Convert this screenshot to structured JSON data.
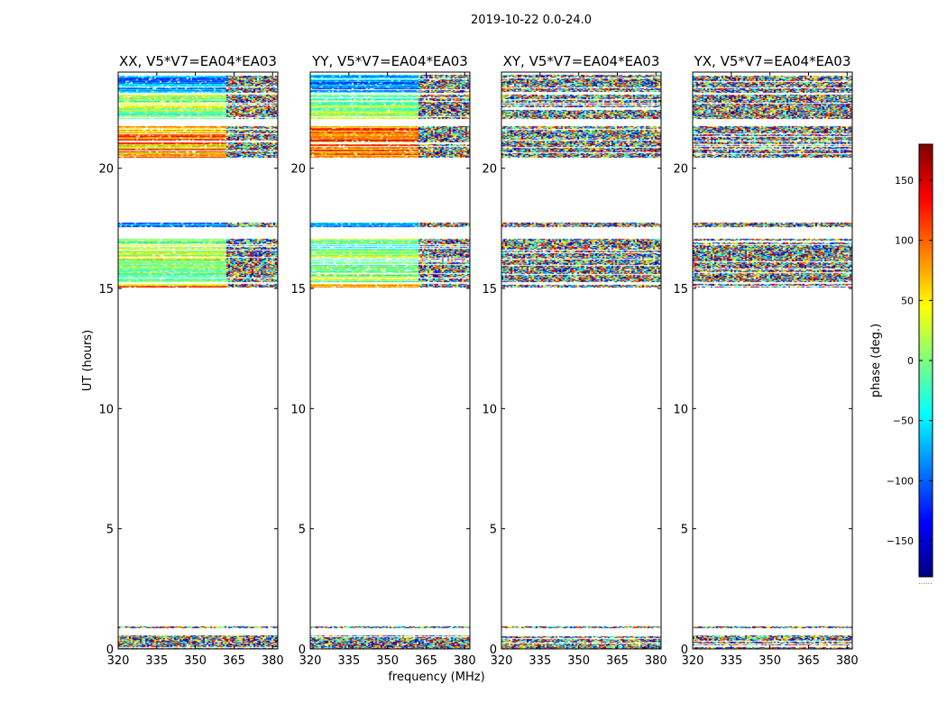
{
  "suptitle": "2019-10-22 0.0-24.0",
  "xlabel": "frequency (MHz)",
  "ylabel": "UT (hours)",
  "colorbar_label": "phase (deg.)",
  "colorbar_footnote": "......",
  "colormap": {
    "name": "jet",
    "stops": [
      "#00007f",
      "#0000ff",
      "#007fff",
      "#00ffff",
      "#7fff7f",
      "#ffff00",
      "#ff7f00",
      "#ff0000",
      "#7f0000"
    ]
  },
  "chart_data": {
    "type": "heatmap",
    "panels": [
      {
        "title": "XX, V5*V7=EA04*EA03",
        "pol": "XX",
        "kind": "parallel"
      },
      {
        "title": "YY, V5*V7=EA04*EA03",
        "pol": "YY",
        "kind": "parallel"
      },
      {
        "title": "XY, V5*V7=EA04*EA03",
        "pol": "XY",
        "kind": "cross"
      },
      {
        "title": "YX, V5*V7=EA04*EA03",
        "pol": "YX",
        "kind": "cross"
      }
    ],
    "x_range": [
      320,
      382
    ],
    "x_ticks": [
      320,
      335,
      350,
      365,
      380
    ],
    "y_range": [
      0,
      24
    ],
    "y_ticks": [
      0,
      5,
      10,
      15,
      20
    ],
    "color_range": [
      -180,
      180
    ],
    "color_ticks": [
      150,
      100,
      50,
      0,
      -50,
      -100,
      -150
    ],
    "color_tick_labels": [
      "150",
      "100",
      "50",
      "0",
      "−50",
      "−100",
      "−150"
    ],
    "data_bands_hours": [
      [
        0.0,
        0.55
      ],
      [
        0.85,
        0.95
      ],
      [
        15.05,
        15.2
      ],
      [
        15.25,
        17.05
      ],
      [
        17.55,
        17.75
      ],
      [
        20.45,
        21.75
      ],
      [
        22.05,
        23.05
      ],
      [
        23.15,
        23.9
      ]
    ],
    "rfi_transition_mhz": 362
  }
}
